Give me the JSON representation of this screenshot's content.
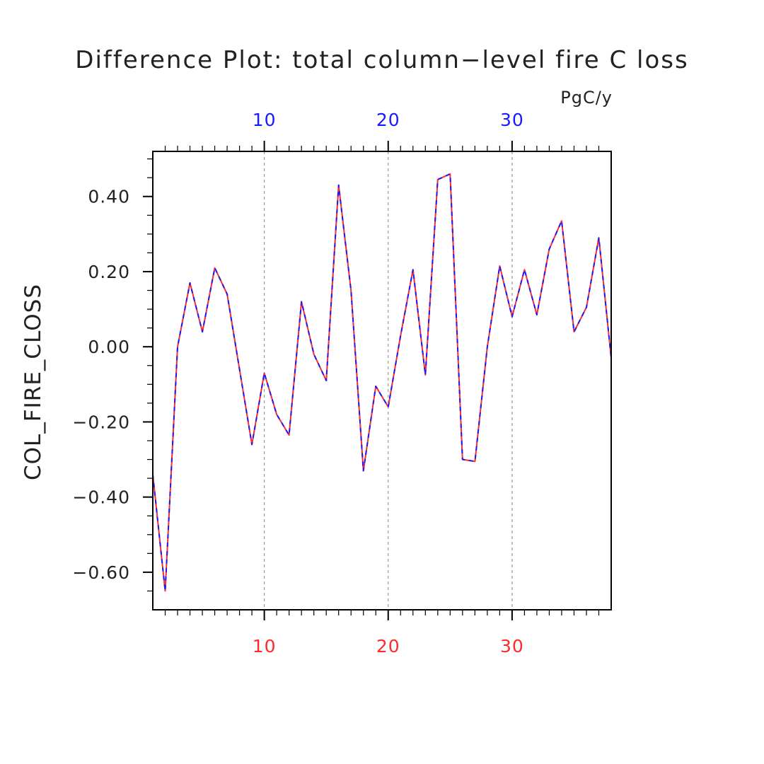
{
  "chart_data": {
    "type": "line",
    "title": "Difference Plot: total column−level fire C loss",
    "units": "PgC/y",
    "xlabel": "",
    "ylabel": "COL_FIRE_CLOSS",
    "xlim": [
      1,
      38
    ],
    "ylim": [
      -0.7,
      0.52
    ],
    "x_ticks": [
      10,
      20,
      30
    ],
    "x_tick_labels": [
      "10",
      "20",
      "30"
    ],
    "x_top_tick_labels": [
      "10",
      "20",
      "30"
    ],
    "y_ticks": [
      -0.6,
      -0.4,
      -0.2,
      0.0,
      0.2,
      0.4
    ],
    "y_tick_labels": [
      "−0.60",
      "−0.40",
      "−0.20",
      "0.00",
      "0.20",
      "0.40"
    ],
    "grid": "vertical dashed at major x ticks",
    "x": [
      1,
      2,
      3,
      4,
      5,
      6,
      7,
      8,
      9,
      10,
      11,
      12,
      13,
      14,
      15,
      16,
      17,
      18,
      19,
      20,
      21,
      22,
      23,
      24,
      25,
      26,
      27,
      28,
      29,
      30,
      31,
      32,
      33,
      34,
      35,
      36,
      37,
      38
    ],
    "series": [
      {
        "values": [
          -0.34,
          -0.65,
          0.0,
          0.17,
          0.04,
          0.21,
          0.14,
          -0.06,
          -0.26,
          -0.07,
          -0.18,
          -0.235,
          0.12,
          -0.02,
          -0.09,
          0.43,
          0.15,
          -0.33,
          -0.105,
          -0.16,
          0.03,
          0.205,
          -0.075,
          0.445,
          0.46,
          -0.3,
          -0.305,
          0.0,
          0.215,
          0.08,
          0.205,
          0.085,
          0.26,
          0.335,
          0.04,
          0.105,
          0.29,
          -0.03
        ],
        "color": "#ff2a2a",
        "style": "solid"
      },
      {
        "values": [
          -0.34,
          -0.65,
          0.0,
          0.17,
          0.04,
          0.21,
          0.14,
          -0.06,
          -0.26,
          -0.07,
          -0.18,
          -0.235,
          0.12,
          -0.02,
          -0.09,
          0.43,
          0.15,
          -0.33,
          -0.105,
          -0.16,
          0.03,
          0.205,
          -0.075,
          0.445,
          0.46,
          -0.3,
          -0.305,
          0.0,
          0.215,
          0.08,
          0.205,
          0.085,
          0.26,
          0.335,
          0.04,
          0.105,
          0.29,
          -0.03
        ],
        "color": "#1a1aff",
        "style": "dashed"
      }
    ],
    "colors": {
      "axis": "#000000",
      "text": "#222222",
      "bottom_tick_labels": "#ff2a2a",
      "top_tick_labels": "#1a1aff",
      "grid": "#888888"
    }
  }
}
